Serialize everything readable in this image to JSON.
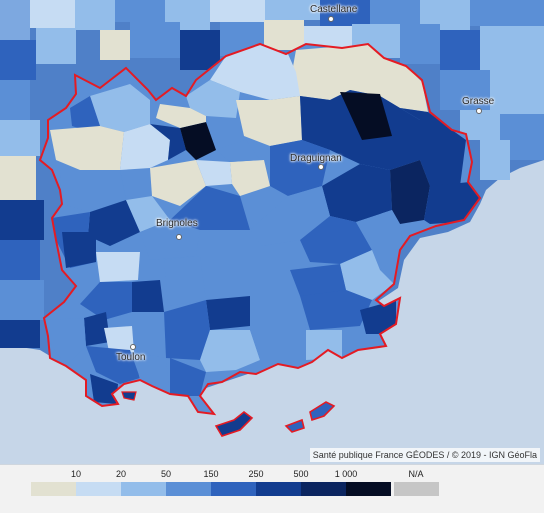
{
  "cities": [
    {
      "name": "Castellane"
    },
    {
      "name": "Grasse"
    },
    {
      "name": "Draguignan"
    },
    {
      "name": "Brignoles"
    },
    {
      "name": "Toulon"
    }
  ],
  "attribution": "Santé publique France GÉODES / © 2019 - IGN GéoFla",
  "legend": {
    "ticks": [
      "10",
      "20",
      "50",
      "150",
      "250",
      "500",
      "1 000"
    ],
    "na_label": "N/A",
    "classes": [
      {
        "color": "#e2e1d1"
      },
      {
        "color": "#c6dcf3"
      },
      {
        "color": "#93bdea"
      },
      {
        "color": "#5b8fd6"
      },
      {
        "color": "#2f63bd"
      },
      {
        "color": "#123c8f"
      },
      {
        "color": "#0b2560"
      },
      {
        "color": "#050d24"
      }
    ],
    "na_color": "#c6c6c6"
  },
  "colors": {
    "sea": "#c6d6e8",
    "border": "#e41b23",
    "region_outline": "#ffffff"
  }
}
